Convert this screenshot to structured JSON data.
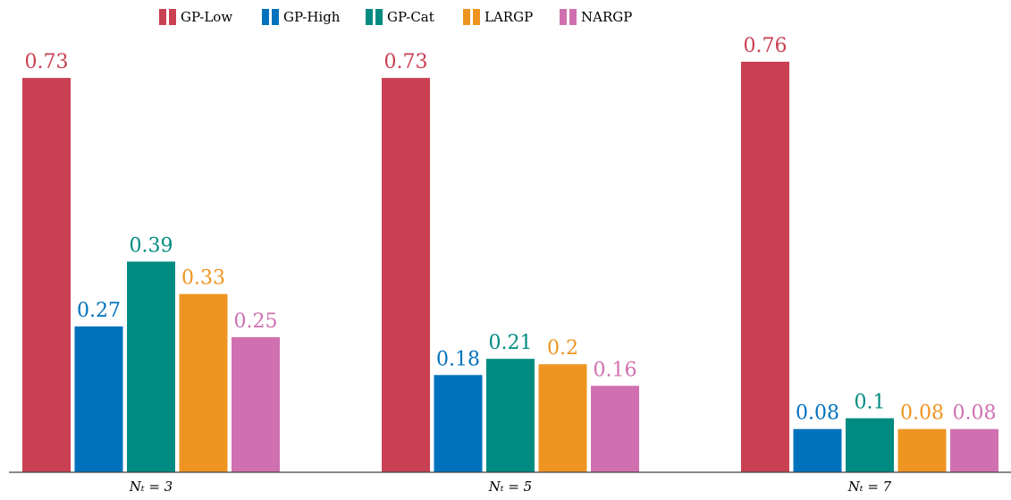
{
  "chart_data": {
    "type": "bar",
    "categories": [
      "Nₜ = 3",
      "Nₜ = 5",
      "Nₜ = 7"
    ],
    "series": [
      {
        "name": "GP-Low",
        "color": "#c94053",
        "values": [
          0.73,
          0.73,
          0.76
        ]
      },
      {
        "name": "GP-High",
        "color": "#0072bd",
        "values": [
          0.27,
          0.18,
          0.08
        ]
      },
      {
        "name": "GP-Cat",
        "color": "#008b82",
        "values": [
          0.39,
          0.21,
          0.1
        ]
      },
      {
        "name": "LARGP",
        "color": "#ee9421",
        "values": [
          0.33,
          0.2,
          0.08
        ]
      },
      {
        "name": "NARGP",
        "color": "#d070b0",
        "values": [
          0.25,
          0.16,
          0.08
        ]
      }
    ]
  }
}
